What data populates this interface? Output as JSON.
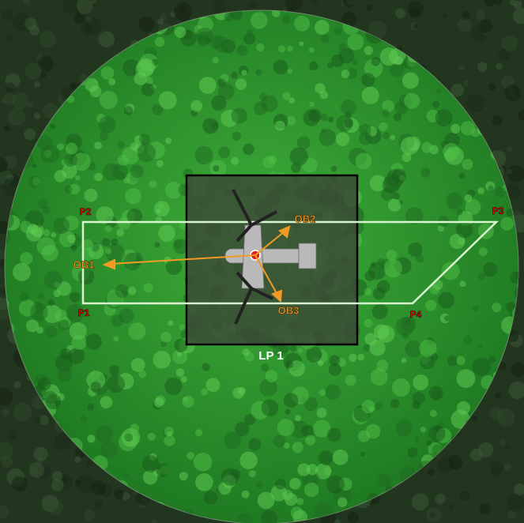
{
  "points": [
    {
      "label": "P1"
    },
    {
      "label": "P2"
    },
    {
      "label": "P3"
    },
    {
      "label": "P4"
    }
  ],
  "obstacles": [
    {
      "label": "OB1"
    },
    {
      "label": "OB2"
    },
    {
      "label": "OB3"
    }
  ],
  "landing_pad": {
    "label": "LP 1"
  }
}
